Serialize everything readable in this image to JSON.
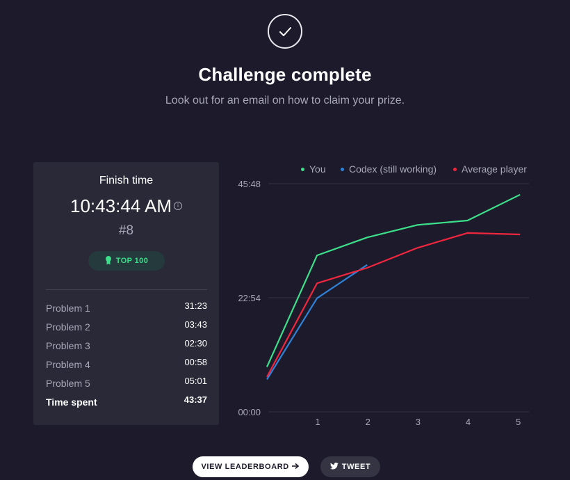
{
  "header": {
    "title": "Challenge complete",
    "subtitle": "Look out for an email on how to claim your prize."
  },
  "icons": {
    "status": "check-circle-icon",
    "info": "info-icon",
    "badge": "medal-icon",
    "leaderboard_button": "arrow-right-icon",
    "tweet_button": "twitter-bird-icon"
  },
  "summary": {
    "title": "Finish time",
    "finish_time": "10:43:44 AM",
    "info_glyph": "i",
    "rank": "#8",
    "badge": "TOP 100",
    "problems": [
      {
        "label": "Problem 1",
        "time": "31:23"
      },
      {
        "label": "Problem 2",
        "time": "03:43"
      },
      {
        "label": "Problem 3",
        "time": "02:30"
      },
      {
        "label": "Problem 4",
        "time": "00:58"
      },
      {
        "label": "Problem 5",
        "time": "05:01"
      }
    ],
    "total": {
      "label": "Time spent",
      "time": "43:37"
    }
  },
  "chart_data": {
    "type": "line",
    "x": [
      0,
      1,
      2,
      3,
      4,
      5
    ],
    "xticks": [
      "1",
      "2",
      "3",
      "4",
      "5"
    ],
    "yticks": [
      "00:00",
      "22:54",
      "45:48"
    ],
    "ylim_minutes": [
      0,
      45.8
    ],
    "xlim": [
      0,
      5.2
    ],
    "grid": "horizontal",
    "legend_position": "top-right",
    "series": [
      {
        "name": "You",
        "color": "#3de08a",
        "x": [
          0,
          1,
          2,
          3,
          4,
          5.05
        ],
        "y_minutes": [
          9.0,
          31.4,
          35.0,
          37.5,
          38.4,
          43.6
        ]
      },
      {
        "name": "Codex (still working)",
        "color": "#2f82d8",
        "x": [
          0,
          1,
          2
        ],
        "y_minutes": [
          6.5,
          22.8,
          29.5
        ]
      },
      {
        "name": "Average player",
        "color": "#f0263e",
        "x": [
          0,
          1,
          2,
          3,
          4,
          5.05
        ],
        "y_minutes": [
          7.0,
          25.8,
          28.9,
          32.9,
          35.9,
          35.6
        ]
      }
    ]
  },
  "actions": {
    "leaderboard": "VIEW LEADERBOARD",
    "tweet": "TWEET"
  }
}
